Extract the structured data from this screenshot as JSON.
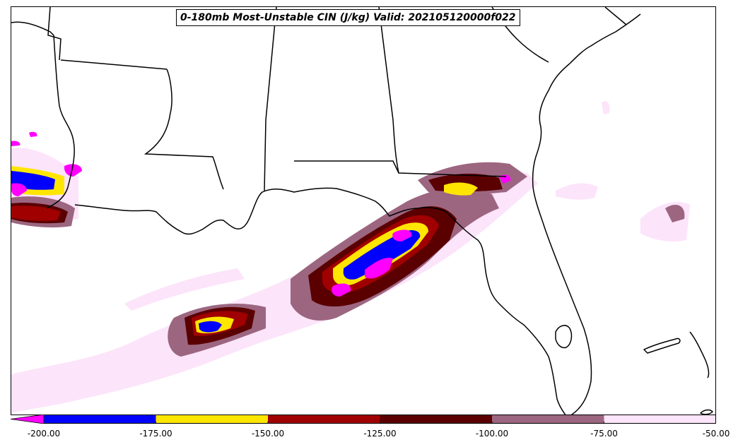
{
  "title": "0-180mb Most-Unstable CIN (J/kg) Valid: 202105120000f022",
  "colorbar": {
    "extend": "min",
    "bins": [
      {
        "from": -200,
        "to": -175,
        "color": "#0000ff"
      },
      {
        "from": -175,
        "to": -150,
        "color": "#ffe600"
      },
      {
        "from": -150,
        "to": -125,
        "color": "#a00000"
      },
      {
        "from": -125,
        "to": -100,
        "color": "#5a0000"
      },
      {
        "from": -100,
        "to": -75,
        "color": "#9c6680"
      },
      {
        "from": -75,
        "to": -50,
        "color": "#fce4fa"
      }
    ],
    "under_color": "#ff00ff",
    "ticks": [
      "-200.00",
      "-175.00",
      "-150.00",
      "-125.00",
      "-100.00",
      "-75.00",
      "-50.00"
    ]
  }
}
